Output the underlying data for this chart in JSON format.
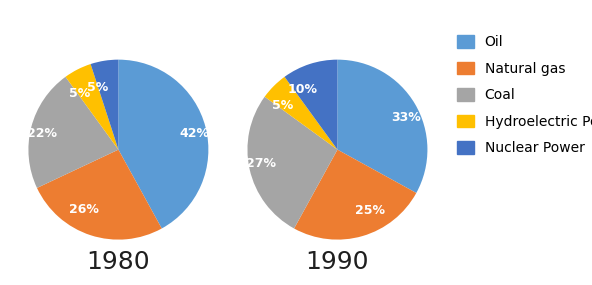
{
  "pie1_title": "1980",
  "pie2_title": "1990",
  "categories": [
    "Oil",
    "Natural gas",
    "Coal",
    "Hydroelectric Power",
    "Nuclear Power"
  ],
  "colors": [
    "#5B9BD5",
    "#ED7D31",
    "#A5A5A5",
    "#FFC000",
    "#4472C4"
  ],
  "values_1980": [
    42,
    26,
    22,
    5,
    5
  ],
  "values_1990": [
    33,
    25,
    27,
    5,
    10
  ],
  "labels_1980": [
    "42%",
    "26%",
    "22%",
    "5%",
    "5%"
  ],
  "labels_1990": [
    "33%",
    "25%",
    "27%",
    "5%",
    "10%"
  ],
  "title_fontsize": 18,
  "label_fontsize": 9,
  "legend_fontsize": 10,
  "background_color": "#ffffff",
  "startangle_1980": 90,
  "startangle_1990": 90
}
